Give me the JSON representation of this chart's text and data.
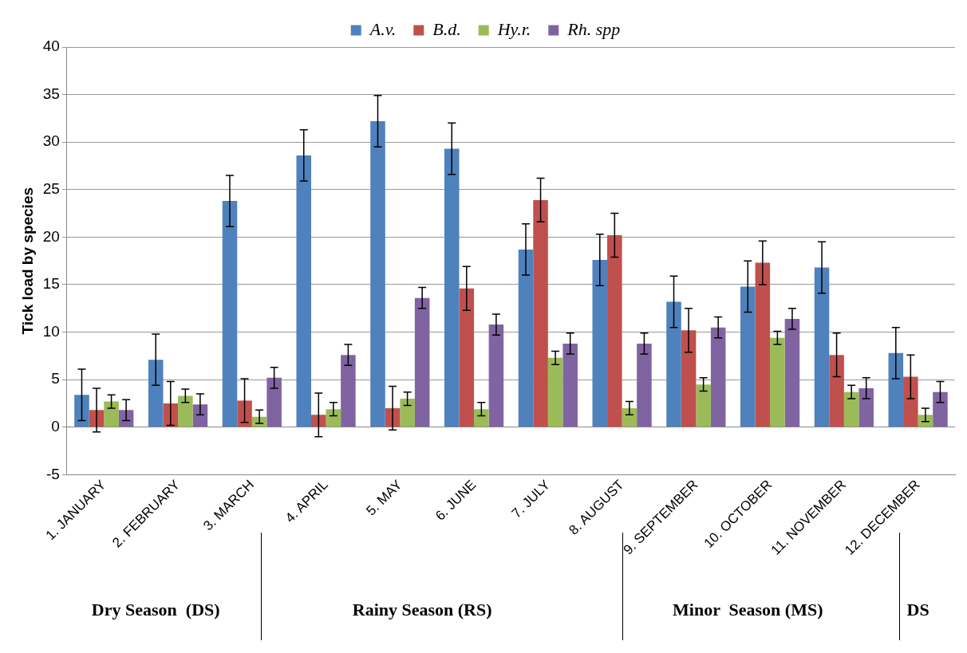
{
  "chart_data": {
    "type": "bar",
    "ylabel": "Tick load by species",
    "categories": [
      "1. JANUARY",
      "2. FEBRUARY",
      "3. MARCH",
      "4. APRIL",
      "5. MAY",
      "6. JUNE",
      "7. JULY",
      "8. AUGUST",
      "9. SEPTEMBER",
      "10. OCTOBER",
      "11. NOVEMBER",
      "12. DECEMBER"
    ],
    "series": [
      {
        "name": "A.v.",
        "color": "#4f81bd",
        "values": [
          3.4,
          7.1,
          23.8,
          28.6,
          32.2,
          29.3,
          18.7,
          17.6,
          13.2,
          14.8,
          16.8,
          7.8
        ],
        "errors": [
          2.7,
          2.7,
          2.7,
          2.7,
          2.7,
          2.7,
          2.7,
          2.7,
          2.7,
          2.7,
          2.7,
          2.7
        ]
      },
      {
        "name": "B.d.",
        "color": "#c0504d",
        "values": [
          1.8,
          2.5,
          2.8,
          1.3,
          2.0,
          14.6,
          23.9,
          20.2,
          10.2,
          17.3,
          7.6,
          5.3
        ],
        "errors": [
          2.3,
          2.3,
          2.3,
          2.3,
          2.3,
          2.3,
          2.3,
          2.3,
          2.3,
          2.3,
          2.3,
          2.3
        ]
      },
      {
        "name": "Hy.r.",
        "color": "#9bbb59",
        "values": [
          2.7,
          3.3,
          1.1,
          1.9,
          3.0,
          1.9,
          7.3,
          2.0,
          4.5,
          9.4,
          3.7,
          1.3
        ],
        "errors": [
          0.7,
          0.7,
          0.7,
          0.7,
          0.7,
          0.7,
          0.7,
          0.7,
          0.7,
          0.7,
          0.7,
          0.7
        ]
      },
      {
        "name": "Rh. spp",
        "color": "#8064a2",
        "values": [
          1.8,
          2.4,
          5.2,
          7.6,
          13.6,
          10.8,
          8.8,
          8.8,
          10.5,
          11.4,
          4.1,
          3.7
        ],
        "errors": [
          1.1,
          1.1,
          1.1,
          1.1,
          1.1,
          1.1,
          1.1,
          1.1,
          1.1,
          1.1,
          1.1,
          1.1
        ]
      }
    ],
    "ylim": [
      -5,
      40
    ],
    "yticks": [
      -5,
      0,
      5,
      10,
      15,
      20,
      25,
      30,
      35,
      40
    ],
    "grid": "y",
    "legend": "top",
    "annotations": [
      "Dry Season  (DS)",
      "Rainy Season (RS)",
      "Minor  Season (MS)",
      "DS"
    ]
  }
}
